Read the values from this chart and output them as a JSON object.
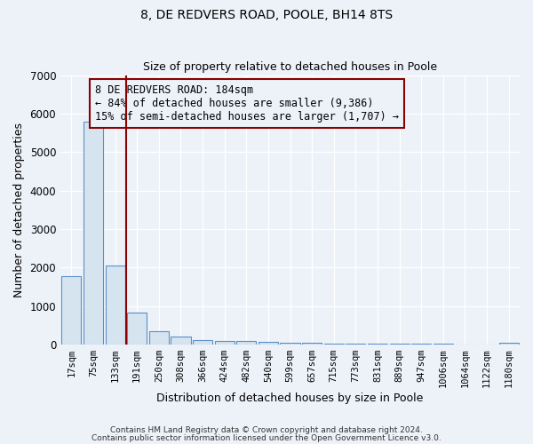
{
  "title": "8, DE REDVERS ROAD, POOLE, BH14 8TS",
  "subtitle": "Size of property relative to detached houses in Poole",
  "xlabel": "Distribution of detached houses by size in Poole",
  "ylabel": "Number of detached properties",
  "categories": [
    "17sqm",
    "75sqm",
    "133sqm",
    "191sqm",
    "250sqm",
    "308sqm",
    "366sqm",
    "424sqm",
    "482sqm",
    "540sqm",
    "599sqm",
    "657sqm",
    "715sqm",
    "773sqm",
    "831sqm",
    "889sqm",
    "947sqm",
    "1006sqm",
    "1064sqm",
    "1122sqm",
    "1180sqm"
  ],
  "values": [
    1780,
    5780,
    2060,
    820,
    350,
    200,
    120,
    95,
    80,
    60,
    50,
    40,
    30,
    20,
    15,
    12,
    10,
    8,
    7,
    6,
    50
  ],
  "bar_color": "#d6e4f0",
  "bar_edge_color": "#5b8fc9",
  "vline_color": "#8b0000",
  "vline_x": 2.5,
  "annotation_text": "8 DE REDVERS ROAD: 184sqm\n← 84% of detached houses are smaller (9,386)\n15% of semi-detached houses are larger (1,707) →",
  "annotation_box_edgecolor": "#8b0000",
  "ylim": [
    0,
    7000
  ],
  "yticks": [
    0,
    1000,
    2000,
    3000,
    4000,
    5000,
    6000,
    7000
  ],
  "footer_line1": "Contains HM Land Registry data © Crown copyright and database right 2024.",
  "footer_line2": "Contains public sector information licensed under the Open Government Licence v3.0.",
  "bg_color": "#edf2f9",
  "plot_bg_color": "#edf2f9",
  "title_fontsize": 10,
  "subtitle_fontsize": 9,
  "ylabel_fontsize": 9,
  "xlabel_fontsize": 9
}
